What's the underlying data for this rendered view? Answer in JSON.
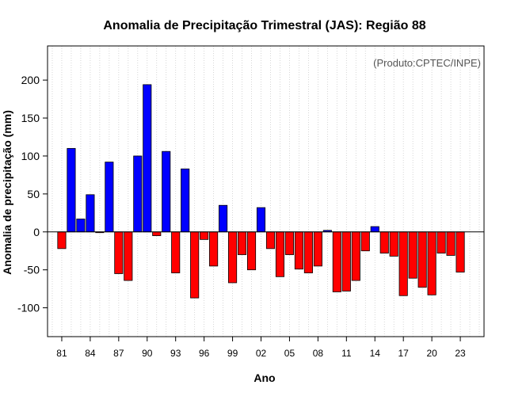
{
  "chart_data": {
    "type": "bar",
    "title": "Anomalia de Precipitação Trimestral (JAS): Região 88",
    "credit": "(Produto:CPTEC/INPE)",
    "xlabel": "Ano",
    "ylabel": "Anomalia de precipitação (mm)",
    "ylim": [
      -138,
      245
    ],
    "yticks": [
      -100,
      -50,
      0,
      50,
      100,
      150,
      200
    ],
    "xlim": [
      1979.5,
      2025.5
    ],
    "xticks": [
      {
        "year": 1981,
        "label": "81"
      },
      {
        "year": 1984,
        "label": "84"
      },
      {
        "year": 1987,
        "label": "87"
      },
      {
        "year": 1990,
        "label": "90"
      },
      {
        "year": 1993,
        "label": "93"
      },
      {
        "year": 1996,
        "label": "96"
      },
      {
        "year": 1999,
        "label": "99"
      },
      {
        "year": 2002,
        "label": "02"
      },
      {
        "year": 2005,
        "label": "05"
      },
      {
        "year": 2008,
        "label": "08"
      },
      {
        "year": 2011,
        "label": "11"
      },
      {
        "year": 2014,
        "label": "14"
      },
      {
        "year": 2017,
        "label": "17"
      },
      {
        "year": 2020,
        "label": "20"
      },
      {
        "year": 2023,
        "label": "23"
      }
    ],
    "positive_color": "#0000ff",
    "negative_color": "#ff0000",
    "grid": true,
    "years": [
      1981,
      1982,
      1983,
      1984,
      1985,
      1986,
      1987,
      1988,
      1989,
      1990,
      1991,
      1992,
      1993,
      1994,
      1995,
      1996,
      1997,
      1998,
      1999,
      2000,
      2001,
      2002,
      2003,
      2004,
      2005,
      2006,
      2007,
      2008,
      2009,
      2010,
      2011,
      2012,
      2013,
      2014,
      2015,
      2016,
      2017,
      2018,
      2019,
      2020,
      2021,
      2022,
      2023
    ],
    "values": [
      -22,
      110,
      17,
      49,
      -1,
      92,
      -55,
      -64,
      100,
      194,
      -5,
      106,
      -54,
      83,
      -87,
      -10,
      -45,
      35,
      -67,
      -30,
      -50,
      32,
      -22,
      -59,
      -30,
      -49,
      -54,
      -45,
      2,
      -79,
      -78,
      -64,
      -25,
      7,
      -28,
      -32,
      -84,
      -61,
      -73,
      -83,
      -28,
      -31,
      -53
    ]
  }
}
